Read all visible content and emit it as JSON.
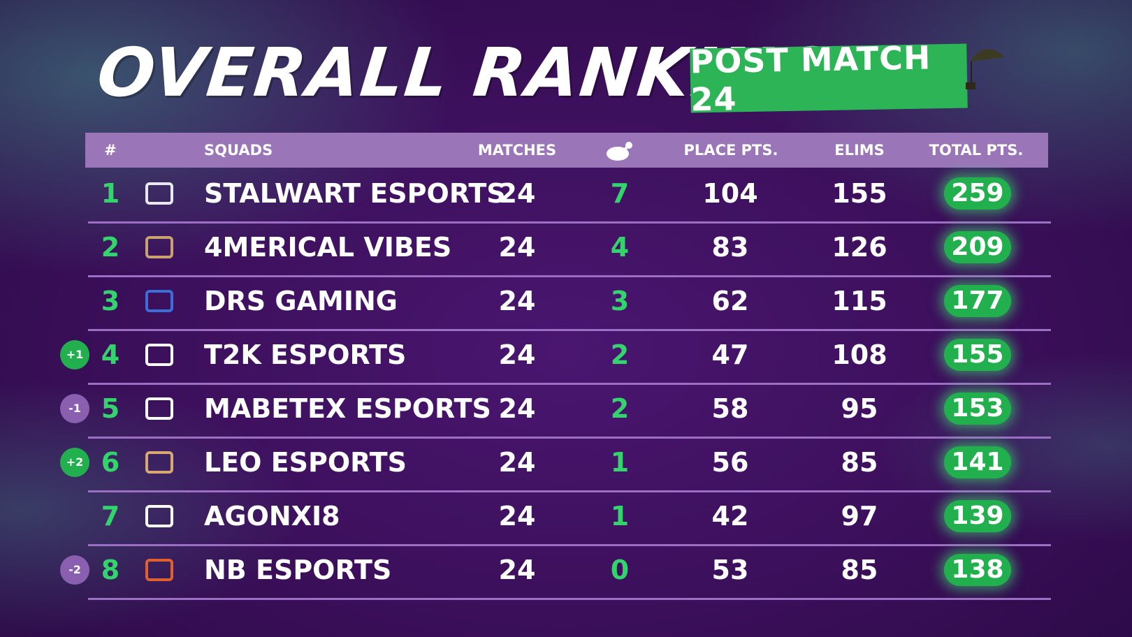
{
  "header": {
    "title": "OVERALL RANKING",
    "badge": "POST MATCH 24"
  },
  "table": {
    "headers": [
      "#",
      "SQUADS",
      "MATCHES",
      "PLACE PTS.",
      "ELIMS",
      "TOTAL PTS."
    ],
    "rows": [
      {
        "rank": 1,
        "squad": "STALWART ESPORTS",
        "matches": 24,
        "wins": 7,
        "place_pts": 104,
        "elims": 155,
        "total_pts": 259
      },
      {
        "rank": 2,
        "squad": "4MERICAL VIBES",
        "matches": 24,
        "wins": 4,
        "place_pts": 83,
        "elims": 126,
        "total_pts": 209
      },
      {
        "rank": 3,
        "squad": "DRS GAMING",
        "matches": 24,
        "wins": 3,
        "place_pts": 62,
        "elims": 115,
        "total_pts": 177
      },
      {
        "change": "+1",
        "rank": 4,
        "squad": "T2K ESPORTS",
        "matches": 24,
        "wins": 2,
        "place_pts": 47,
        "elims": 108,
        "total_pts": 155
      },
      {
        "change": "-1",
        "rank": 5,
        "squad": "MABETEX ESPORTS",
        "matches": 24,
        "wins": 2,
        "place_pts": 58,
        "elims": 95,
        "total_pts": 153
      },
      {
        "change": "+2",
        "rank": 6,
        "squad": "LEO ESPORTS",
        "matches": 24,
        "wins": 1,
        "place_pts": 56,
        "elims": 85,
        "total_pts": 141
      },
      {
        "rank": 7,
        "squad": "AGONXI8",
        "matches": 24,
        "wins": 1,
        "place_pts": 42,
        "elims": 97,
        "total_pts": 139
      },
      {
        "change": "-2",
        "rank": 8,
        "squad": "NB ESPORTS",
        "matches": 24,
        "wins": 0,
        "place_pts": 53,
        "elims": 85,
        "total_pts": 138
      }
    ]
  }
}
